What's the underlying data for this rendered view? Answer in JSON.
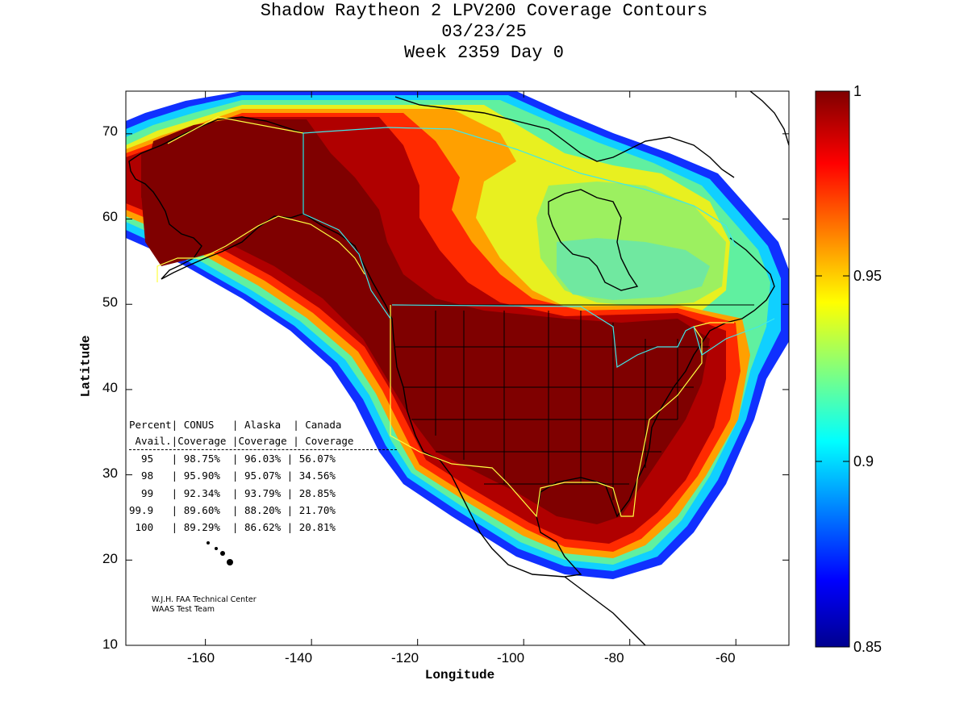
{
  "title": {
    "line1": "Shadow Raytheon 2 LPV200 Coverage Contours",
    "line2": "03/23/25",
    "line3": "Week 2359 Day 0"
  },
  "axes": {
    "xlabel": "Longitude",
    "ylabel": "Latitude",
    "xlim": [
      -175,
      -50
    ],
    "ylim": [
      10,
      75
    ],
    "xticks": [
      -160,
      -140,
      -120,
      -100,
      -80,
      -60
    ],
    "yticks": [
      10,
      20,
      30,
      40,
      50,
      60,
      70
    ]
  },
  "colorbar": {
    "range": [
      0.85,
      1
    ],
    "ticks": [
      "1",
      "0.95",
      "0.9",
      "0.85"
    ],
    "colormap": "jet"
  },
  "stats_table": {
    "header1": "Percent| CONUS   | Alaska  | Canada",
    "header2": " Avail.|Coverage |Coverage | Coverage",
    "rows": [
      "  95   | 98.75%  | 96.03% | 56.07%",
      "  98   | 95.90%  | 95.07% | 34.56%",
      "  99   | 92.34%  | 93.79% | 28.85%",
      "99.9   | 89.60%  | 88.20% | 21.70%",
      " 100   | 89.29%  | 86.62% | 20.81%"
    ]
  },
  "credits": {
    "line1": "W.J.H. FAA Technical Center",
    "line2": "WAAS Test Team"
  },
  "colors": {
    "max": "#7f0000",
    "high": "#ff2a00",
    "mid": "#ffd000",
    "low": "#60f0a0",
    "min": "#00008f"
  }
}
